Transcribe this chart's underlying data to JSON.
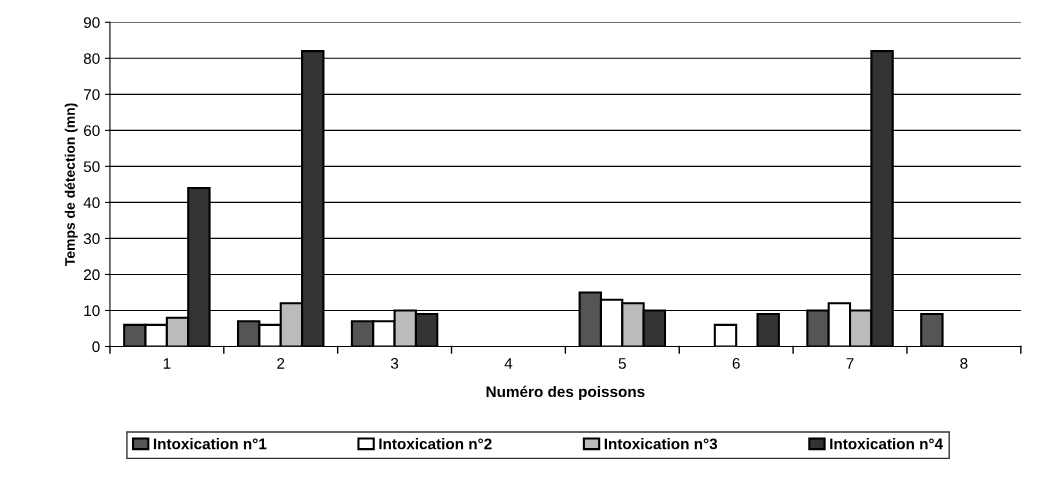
{
  "chart_data": {
    "type": "bar",
    "xlabel": "Numéro des poissons",
    "ylabel": "Temps de détection (mn)",
    "categories": [
      "1",
      "2",
      "3",
      "4",
      "5",
      "6",
      "7",
      "8"
    ],
    "series": [
      {
        "name": "Intoxication n°1",
        "color": "#555555",
        "values": [
          6,
          7,
          7,
          null,
          15,
          null,
          10,
          9
        ]
      },
      {
        "name": "Intoxication n°2",
        "color": "#ffffff",
        "values": [
          6,
          6,
          7,
          null,
          13,
          6,
          12,
          null
        ]
      },
      {
        "name": "Intoxication n°3",
        "color": "#bbbbbb",
        "values": [
          8,
          12,
          10,
          null,
          12,
          null,
          10,
          null
        ]
      },
      {
        "name": "Intoxication n°4",
        "color": "#333333",
        "values": [
          44,
          82,
          9,
          null,
          10,
          9,
          82,
          null
        ]
      }
    ],
    "ylim": [
      0,
      90
    ],
    "yticks": [
      0,
      10,
      20,
      30,
      40,
      50,
      60,
      70,
      80,
      90
    ],
    "grid": "y",
    "legend": "bottom"
  }
}
